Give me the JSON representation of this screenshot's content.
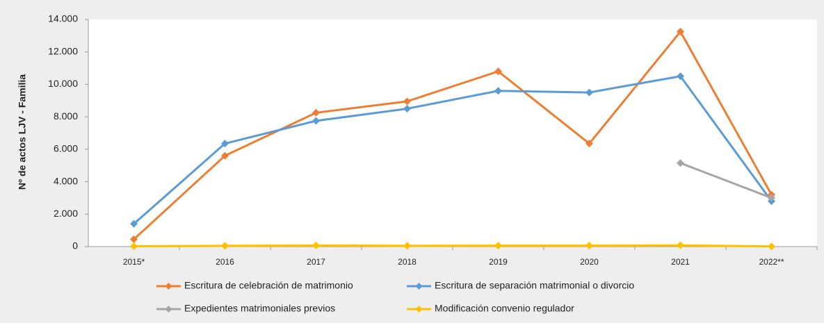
{
  "chart_data": {
    "type": "line",
    "y_label": "Nº de actos LJV - Familia",
    "categories": [
      "2015*",
      "2016",
      "2017",
      "2018",
      "2019",
      "2020",
      "2021",
      "2022**"
    ],
    "series": [
      {
        "name": "Escritura de celebración de matrimonio",
        "color": "#ed7d31",
        "values": [
          450,
          5600,
          8250,
          8950,
          10800,
          6350,
          13250,
          3200
        ]
      },
      {
        "name": "Escritura de separación matrimonial o divorcio",
        "color": "#5b9bd5",
        "values": [
          1400,
          6350,
          7750,
          8500,
          9600,
          9500,
          10500,
          2800
        ]
      },
      {
        "name": "Expedientes matrimoniales previos",
        "color": "#a5a5a5",
        "values": [
          null,
          null,
          null,
          null,
          null,
          null,
          5150,
          3000
        ]
      },
      {
        "name": "Modificación convenio regulador",
        "color": "#ffc000",
        "values": [
          20,
          50,
          70,
          50,
          60,
          60,
          80,
          10
        ]
      }
    ],
    "ylim": [
      0,
      14000
    ],
    "yticks": [
      0,
      {
        "value": 2000,
        "label": "2.000"
      },
      {
        "value": 4000,
        "label": "4.000"
      },
      {
        "value": 6000,
        "label": "6.000"
      },
      {
        "value": 8000,
        "label": "8.000"
      },
      {
        "value": 10000,
        "label": "10.000"
      },
      {
        "value": 12000,
        "label": "12.000"
      },
      {
        "value": 14000,
        "label": "14.000"
      }
    ],
    "grid": false,
    "legend": "bottom"
  }
}
